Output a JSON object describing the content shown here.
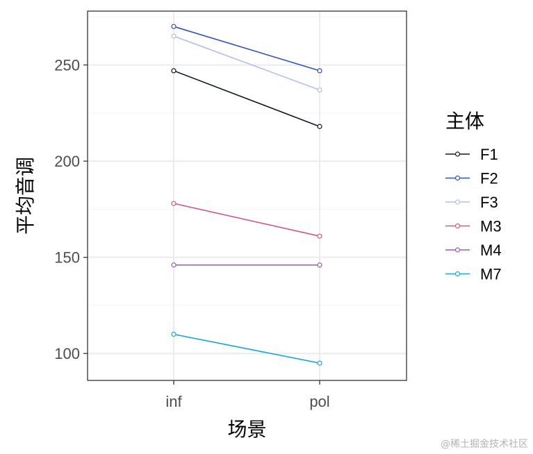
{
  "chart_data": {
    "type": "line",
    "xlabel": "场景",
    "ylabel": "平均音调",
    "categories": [
      "inf",
      "pol"
    ],
    "ylim": [
      86,
      278
    ],
    "yticks": [
      100,
      150,
      200,
      250
    ],
    "grid": true,
    "legend": {
      "title": "主体",
      "position": "right"
    },
    "series": [
      {
        "name": "F1",
        "color": "#0b1a26",
        "values": [
          247,
          218
        ]
      },
      {
        "name": "F2",
        "color": "#2f52b4",
        "values": [
          270,
          247
        ]
      },
      {
        "name": "F3",
        "color": "#b0c0ec",
        "values": [
          265,
          237
        ]
      },
      {
        "name": "M3",
        "color": "#d4587a",
        "values": [
          178,
          161
        ]
      },
      {
        "name": "M4",
        "color": "#9a5ab8",
        "values": [
          146,
          146
        ]
      },
      {
        "name": "M7",
        "color": "#1aa6d9",
        "values": [
          110,
          95
        ]
      }
    ]
  },
  "watermark": "@稀土掘金技术社区"
}
